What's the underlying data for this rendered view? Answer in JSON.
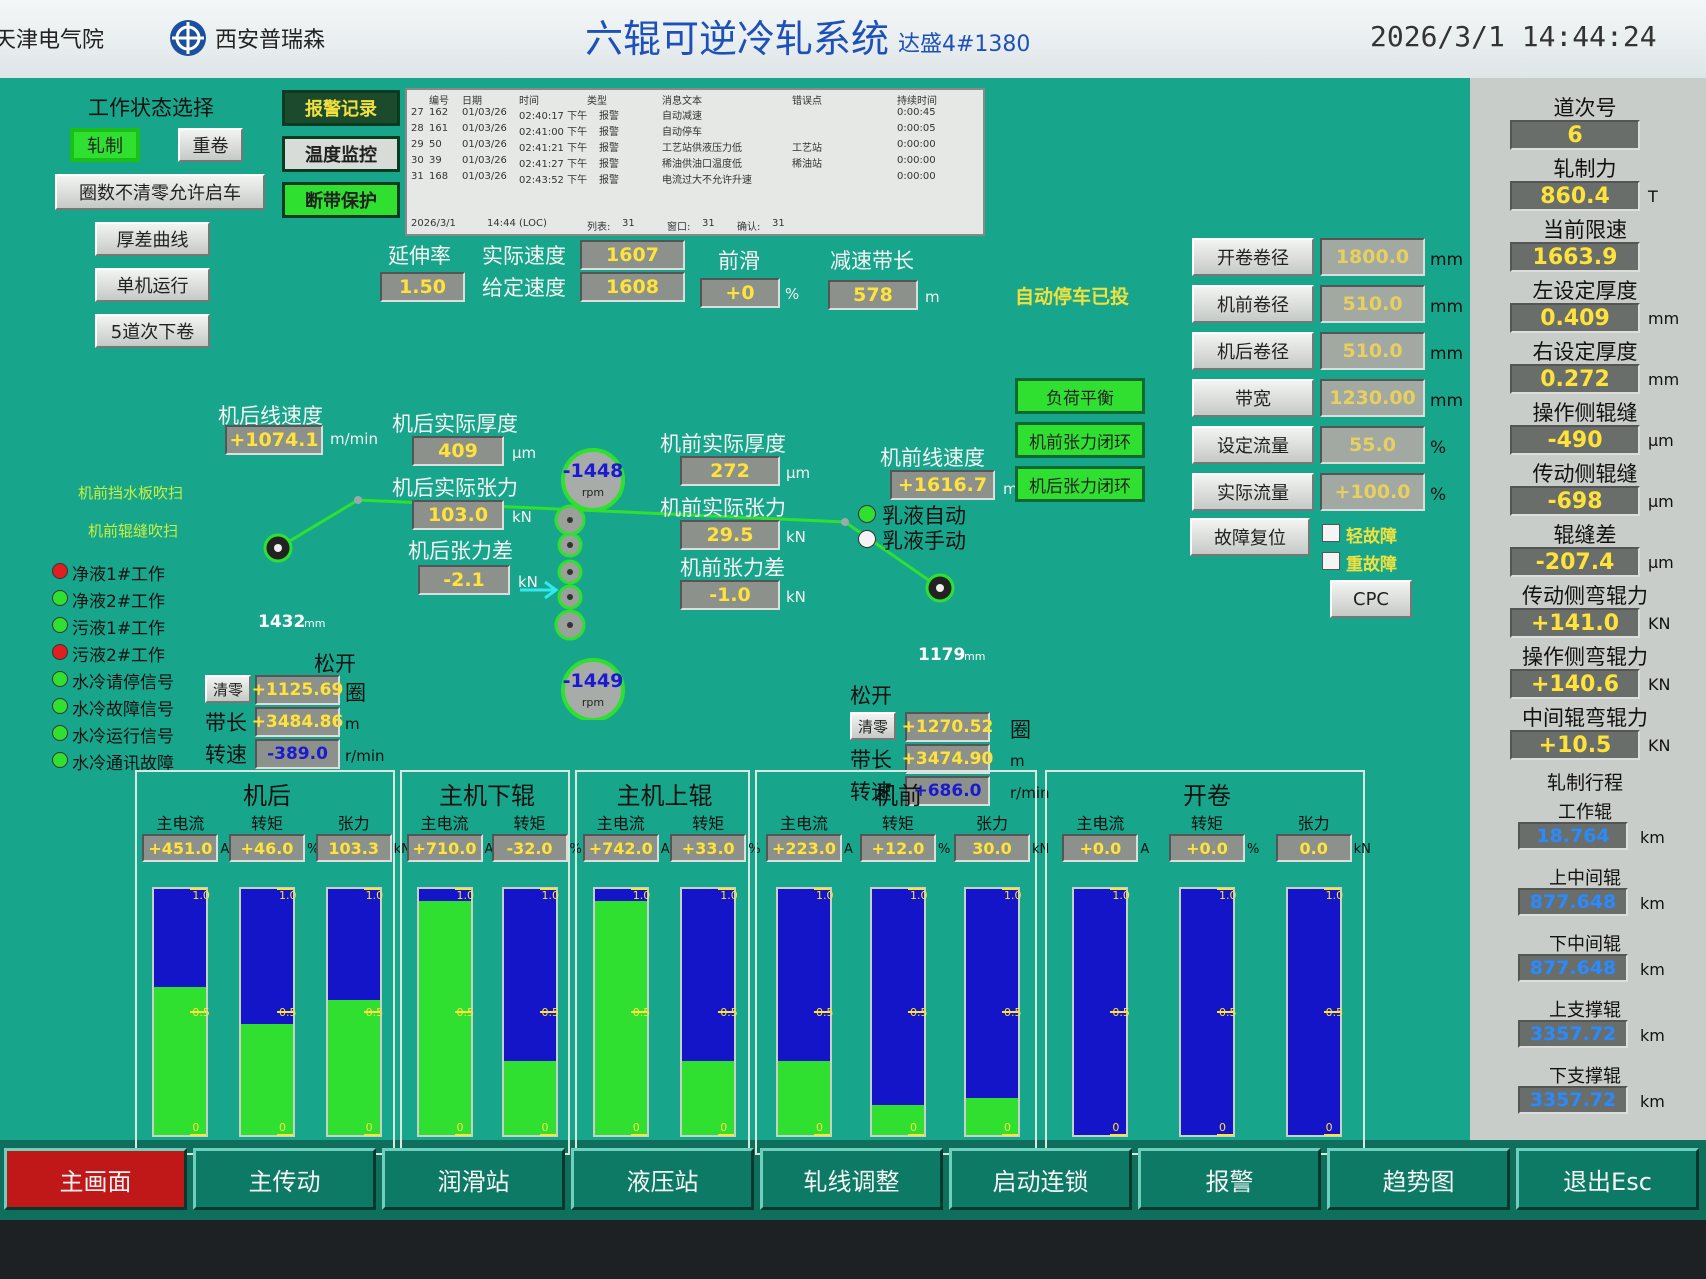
{
  "header": {
    "org": "天津电气院",
    "logo_text": "西安普瑞森",
    "title": "六辊可逆冷轧系统",
    "subtitle": "达盛4#1380",
    "datetime": "2026/3/1  14:44:24"
  },
  "mode_panel": {
    "title": "工作状态选择",
    "buttons": [
      {
        "label": "轧制",
        "active": true
      },
      {
        "label": "重卷"
      },
      {
        "label": "圈数不清零允许启车"
      },
      {
        "label": "厚差曲线"
      },
      {
        "label": "单机运行"
      },
      {
        "label": "5道次下卷"
      }
    ]
  },
  "purge": [
    "机前挡水板吹扫",
    "机前辊缝吹扫"
  ],
  "signals": [
    {
      "label": "净液1#工作",
      "color": "#e02020"
    },
    {
      "label": "净液2#工作",
      "color": "#30e030"
    },
    {
      "label": "污液1#工作",
      "color": "#30e030"
    },
    {
      "label": "污液2#工作",
      "color": "#e02020"
    },
    {
      "label": "水冷请停信号",
      "color": "#30e030"
    },
    {
      "label": "水冷故障信号",
      "color": "#30e030"
    },
    {
      "label": "水冷运行信号",
      "color": "#30e030"
    },
    {
      "label": "水冷通讯故障",
      "color": "#30e030"
    }
  ],
  "menu_buttons": [
    {
      "label": "报警记录",
      "bg": "#1c4a2c",
      "fg": "#f0e040"
    },
    {
      "label": "温度监控",
      "bg": "#d8dcd8",
      "fg": "#202020"
    },
    {
      "label": "断带保护",
      "bg": "#30e030",
      "fg": "#202020"
    }
  ],
  "alarm_table": {
    "headers": [
      "编号",
      "日期",
      "时间",
      "类型",
      "消息文本",
      "错误点",
      "持续时间"
    ],
    "rows": [
      [
        "27",
        "162",
        "01/03/26",
        "02:40:17 下午",
        "报警",
        "自动减速",
        null,
        "0:00:45"
      ],
      [
        "28",
        "161",
        "01/03/26",
        "02:41:00 下午",
        "报警",
        "自动停车",
        null,
        "0:00:05"
      ],
      [
        "29",
        "50",
        "01/03/26",
        "02:41:21 下午",
        "报警",
        "工艺站供液压力低",
        "工艺站",
        "0:00:00"
      ],
      [
        "30",
        "39",
        "01/03/26",
        "02:41:27 下午",
        "报警",
        "稀油供油口温度低",
        "稀油站",
        "0:00:00"
      ],
      [
        "31",
        "168",
        "01/03/26",
        "02:43:52 下午",
        "报警",
        "电流过大不允许升速",
        null,
        "0:00:00"
      ]
    ],
    "footer": [
      "2026/3/1",
      "14:44 (LOC)",
      "列表:",
      "31",
      "窗口:",
      "31",
      "确认:",
      "31"
    ]
  },
  "process": [
    {
      "label": "延伸率",
      "value": "1.50"
    },
    {
      "label": "实际速度",
      "value": "1607"
    },
    {
      "label": "给定速度",
      "value": "1608"
    },
    {
      "label": "前滑",
      "value": "+0",
      "unit": "%"
    },
    {
      "label": "减速带长",
      "value": "578",
      "unit": "m"
    },
    {
      "label": "机后线速度",
      "value": "+1074.1",
      "unit": "m/min"
    },
    {
      "label": "机后实际厚度",
      "value": "409",
      "unit": "μm"
    },
    {
      "label": "机后实际张力",
      "value": "103.0",
      "unit": "kN"
    },
    {
      "label": "机后张力差",
      "value": "-2.1",
      "unit": "kN"
    },
    {
      "label": "机前实际厚度",
      "value": "272",
      "unit": "μm"
    },
    {
      "label": "机前实际张力",
      "value": "29.5",
      "unit": "kN"
    },
    {
      "label": "机前张力差",
      "value": "-1.0",
      "unit": "kN"
    },
    {
      "label": "机前线速度",
      "value": "+1616.7",
      "unit": "m/min"
    }
  ],
  "rolls": [
    {
      "value": "-1448",
      "unit": "rpm"
    },
    {
      "value": "-1449",
      "unit": "rpm"
    }
  ],
  "coils": [
    {
      "diameter": "1432",
      "unit": "mm",
      "release": "松开",
      "reset": "清零",
      "turns": "+1125.69",
      "turns_unit": "圈",
      "length_label": "带长",
      "length": "+3484.86",
      "length_unit": "m",
      "speed_label": "转速",
      "speed": "-389.0",
      "speed_unit": "r/min"
    },
    {
      "diameter": "1179",
      "unit": "mm",
      "release": "松开",
      "reset": "清零",
      "turns": "+1270.52",
      "turns_unit": "圈",
      "length_label": "带长",
      "length": "+3474.90",
      "length_unit": "m",
      "speed_label": "转速",
      "speed": "+686.0",
      "speed_unit": "r/min"
    }
  ],
  "emulsion": [
    {
      "label": "乳液自动",
      "on": true
    },
    {
      "label": "乳液手动",
      "on": false
    }
  ],
  "auto_stop": "自动停车已投",
  "control_buttons": [
    "负荷平衡",
    "机前张力闭环",
    "机后张力闭环"
  ],
  "params": [
    {
      "label": "开卷卷径",
      "value": "1800.0",
      "unit": "mm"
    },
    {
      "label": "机前卷径",
      "value": "510.0",
      "unit": "mm"
    },
    {
      "label": "机后卷径",
      "value": "510.0",
      "unit": "mm"
    },
    {
      "label": "带宽",
      "value": "1230.00",
      "unit": "mm"
    },
    {
      "label": "设定流量",
      "value": "55.0",
      "unit": "%"
    },
    {
      "label": "实际流量",
      "value": "+100.0",
      "unit": "%"
    }
  ],
  "fault": {
    "reset": "故障复位",
    "light": "轻故障",
    "heavy": "重故障",
    "cpc": "CPC"
  },
  "drives": {
    "scale": [
      0,
      0.5,
      {
        "value": 1,
        "label": "1.0"
      }
    ],
    "groups": [
      {
        "name": "机后",
        "gauges": [
          {
            "label": "主电流",
            "value": "+451.0",
            "unit": "A",
            "level": 0.6
          },
          {
            "label": "转矩",
            "value": "+46.0",
            "unit": "%",
            "level": 0.45
          },
          {
            "label": "张力",
            "value": "103.3",
            "unit": "kN",
            "level": 0.55
          }
        ]
      },
      {
        "name": "主机下辊",
        "gauges": [
          {
            "label": "主电流",
            "value": "+710.0",
            "unit": "A",
            "level": 0.95
          },
          {
            "label": "转矩",
            "value": "-32.0",
            "unit": "%",
            "level": 0.3
          }
        ]
      },
      {
        "name": "主机上辊",
        "gauges": [
          {
            "label": "主电流",
            "value": "+742.0",
            "unit": "A",
            "level": 0.95
          },
          {
            "label": "转矩",
            "value": "+33.0",
            "unit": "%",
            "level": 0.3
          }
        ]
      },
      {
        "name": "机前",
        "gauges": [
          {
            "label": "主电流",
            "value": "+223.0",
            "unit": "A",
            "level": 0.3
          },
          {
            "label": "转矩",
            "value": "+12.0",
            "unit": "%",
            "level": 0.12
          },
          {
            "label": "张力",
            "value": "30.0",
            "unit": "kN",
            "level": 0.15
          }
        ]
      },
      {
        "name": "开卷",
        "gauges": [
          {
            "label": "主电流",
            "value": "+0.0",
            "unit": "A",
            "level": 0
          },
          {
            "label": "转矩",
            "value": "+0.0",
            "unit": "%",
            "level": 0
          },
          {
            "label": "张力",
            "value": "0.0",
            "unit": "kN",
            "level": 0
          }
        ]
      }
    ]
  },
  "rolling": [
    {
      "label": "道次号",
      "value": "6"
    },
    {
      "label": "轧制力",
      "value": "860.4",
      "unit": "T"
    },
    {
      "label": "当前限速",
      "value": "1663.9"
    },
    {
      "label": "左设定厚度",
      "value": "0.409",
      "unit": "mm"
    },
    {
      "label": "右设定厚度",
      "value": "0.272",
      "unit": "mm"
    },
    {
      "label": "操作侧辊缝",
      "value": "-490",
      "unit": "μm"
    },
    {
      "label": "传动侧辊缝",
      "value": "-698",
      "unit": "μm"
    },
    {
      "label": "辊缝差",
      "value": "-207.4",
      "unit": "μm"
    },
    {
      "label": "传动侧弯辊力",
      "value": "+141.0",
      "unit": "KN"
    },
    {
      "label": "操作侧弯辊力",
      "value": "+140.6",
      "unit": "KN"
    },
    {
      "label": "中间辊弯辊力",
      "value": "+10.5",
      "unit": "KN"
    }
  ],
  "travel": {
    "title": "轧制行程",
    "items": [
      {
        "label": "工作辊",
        "value": "18.764",
        "unit": "km"
      },
      {
        "label": "上中间辊",
        "value": "877.648",
        "unit": "km"
      },
      {
        "label": "下中间辊",
        "value": "877.648",
        "unit": "km"
      },
      {
        "label": "上支撑辊",
        "value": "3357.72",
        "unit": "km"
      },
      {
        "label": "下支撑辊",
        "value": "3357.72",
        "unit": "km"
      }
    ]
  },
  "nav": [
    {
      "label": "主画面",
      "active": true
    },
    {
      "label": "主传动"
    },
    {
      "label": "润滑站"
    },
    {
      "label": "液压站"
    },
    {
      "label": "轧线调整"
    },
    {
      "label": "启动连锁"
    },
    {
      "label": "报警"
    },
    {
      "label": "趋势图"
    },
    {
      "label": "退出Esc"
    }
  ]
}
